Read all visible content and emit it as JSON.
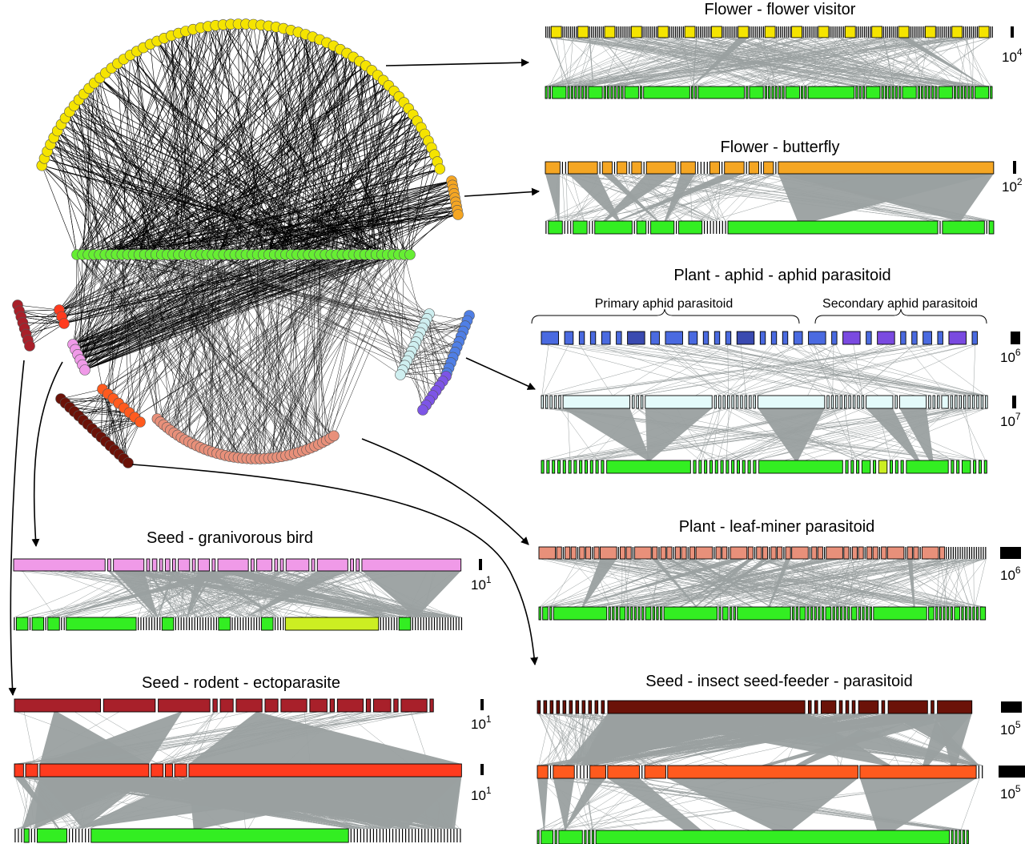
{
  "colors": {
    "flower_visitor": "#f5e400",
    "butterfly": "#f5a623",
    "plant": "#33ee22",
    "plant_yellow": "#ccee22",
    "seed_rodent": "#a8202a",
    "rodent": "#ff3b1e",
    "seed_bird": "#f09ae8",
    "ectoparasite": "#6b1208",
    "insect_seedfeeder": "#ff5a1e",
    "leafminer": "#e8907a",
    "aphid": "#e4fafa",
    "primary_parasitoid": "#4a6ae0",
    "secondary_parasitoid": "#7a4ae0",
    "link_gray": "#9aa0a0",
    "link_dark": "#111111"
  },
  "panels": [
    {
      "id": "flower-visitor",
      "title": "Flower - flower visitor",
      "scale": {
        "base": "10",
        "exp": "4"
      }
    },
    {
      "id": "butterfly",
      "title": "Flower - butterfly",
      "scale": {
        "base": "10",
        "exp": "2"
      }
    },
    {
      "id": "aphid",
      "title": "Plant - aphid - aphid parasitoid",
      "brace_labels": [
        "Primary aphid parasitoid",
        "Secondary aphid parasitoid"
      ],
      "scales": [
        {
          "base": "10",
          "exp": "6"
        },
        {
          "base": "10",
          "exp": "7"
        }
      ]
    },
    {
      "id": "leafminer",
      "title": "Plant - leaf-miner parasitoid",
      "scale": {
        "base": "10",
        "exp": "6"
      }
    },
    {
      "id": "bird",
      "title": "Seed - granivorous bird",
      "scale": {
        "base": "10",
        "exp": "1"
      }
    },
    {
      "id": "seedfeeder",
      "title": "Seed - insect seed-feeder -  parasitoid",
      "scales": [
        {
          "base": "10",
          "exp": "5"
        },
        {
          "base": "10",
          "exp": "5"
        }
      ]
    },
    {
      "id": "rodent",
      "title": "Seed - rodent - ectoparasite",
      "scales": [
        {
          "base": "10",
          "exp": "1"
        },
        {
          "base": "10",
          "exp": "1"
        }
      ]
    }
  ]
}
